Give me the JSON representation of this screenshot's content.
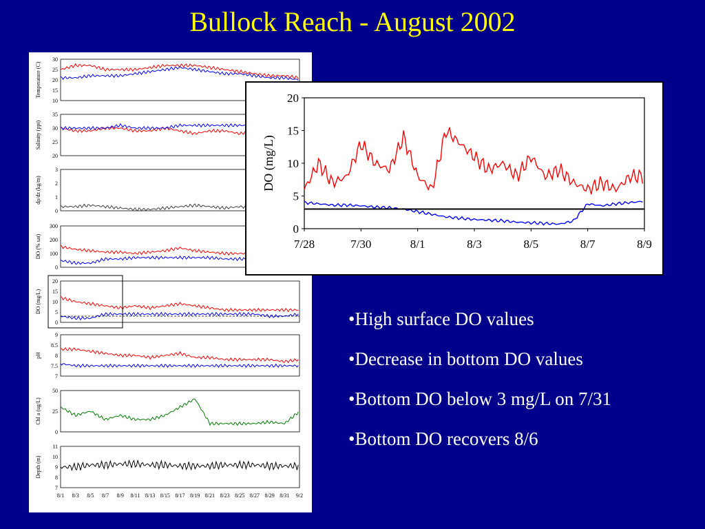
{
  "slide": {
    "title": "Bullock Reach - August 2002",
    "bullets": [
      "•High surface DO values",
      "•Decrease in bottom DO values",
      "•Bottom DO below 3 mg/L on 7/31",
      "•Bottom DO recovers 8/6"
    ]
  },
  "colors": {
    "background": "#00008b",
    "title": "#ffff00",
    "surface": "#ff0000",
    "bottom": "#0000ff",
    "chl": "#008000",
    "dp": "#404040",
    "depth": "#000000",
    "threshold": "#000000"
  },
  "chart_data": [
    {
      "type": "line",
      "title": "",
      "ylabel": "DO (mg/L)",
      "xlabel": "",
      "x_ticks": [
        "7/28",
        "7/30",
        "8/1",
        "8/3",
        "8/5",
        "8/7",
        "8/9"
      ],
      "ylim": [
        0,
        20
      ],
      "y_ticks": [
        0,
        5,
        10,
        15,
        20
      ],
      "threshold": 3,
      "series": [
        {
          "color": "#ff0000",
          "x": [
            0,
            0.5,
            1,
            1.5,
            2,
            2.5,
            3,
            3.5,
            4,
            4.5,
            5,
            5.5,
            6,
            6.5,
            7,
            7.5,
            8,
            8.5,
            9,
            9.5,
            10,
            10.5,
            11,
            11.5,
            12
          ],
          "values": [
            6,
            10,
            7,
            8,
            13,
            10,
            9,
            14,
            8,
            6,
            15,
            13,
            11,
            9,
            10,
            8,
            11,
            8,
            9,
            7,
            6,
            7,
            6,
            8,
            8
          ]
        },
        {
          "color": "#0000ff",
          "x": [
            0,
            0.5,
            1,
            1.5,
            2,
            2.5,
            3,
            3.5,
            4,
            4.5,
            5,
            5.5,
            6,
            6.5,
            7,
            7.5,
            8,
            8.5,
            9,
            9.5,
            10,
            10.5,
            11,
            11.5,
            12
          ],
          "values": [
            4,
            3.8,
            3.6,
            3.6,
            3.5,
            3.3,
            3.2,
            3.0,
            2.6,
            2.2,
            1.8,
            1.6,
            1.4,
            1.3,
            1.2,
            1.0,
            0.9,
            0.8,
            0.7,
            1.2,
            3.8,
            3.5,
            3.8,
            4.0,
            4.2
          ]
        }
      ]
    },
    {
      "type": "line",
      "ylabel": "Temperature (C)",
      "yticks": [
        10,
        15,
        20,
        25,
        30
      ],
      "x_ticks": [
        "8/1",
        "8/3",
        "8/5",
        "8/7",
        "8/9",
        "8/11",
        "8/13",
        "8/15",
        "8/17",
        "8/19",
        "8/21",
        "8/23",
        "8/25",
        "8/27",
        "8/29",
        "8/31",
        "9/2"
      ],
      "series": [
        {
          "color": "#ff0000",
          "values": [
            25,
            27,
            27,
            25,
            25,
            25,
            26,
            27,
            27,
            27,
            26,
            25,
            24,
            23,
            22,
            22,
            21
          ]
        },
        {
          "color": "#0000ff",
          "values": [
            21,
            21,
            22,
            22,
            22,
            23,
            24,
            25,
            26,
            25,
            24,
            23,
            23,
            22,
            21,
            21,
            20
          ]
        }
      ]
    },
    {
      "type": "line",
      "ylabel": "Salinity (ppt)",
      "yticks": [
        20,
        25,
        30,
        35
      ],
      "series": [
        {
          "color": "#ff0000",
          "values": [
            30,
            29,
            29,
            30,
            30,
            29,
            29,
            30,
            29,
            28,
            29,
            29,
            28,
            29,
            29,
            29,
            29
          ]
        },
        {
          "color": "#0000ff",
          "values": [
            30,
            30,
            30,
            30,
            31,
            30,
            30,
            30,
            31,
            31,
            31,
            31,
            31,
            31,
            30,
            30,
            30
          ]
        }
      ]
    },
    {
      "type": "line",
      "ylabel": "dρ/dz (kg/m)",
      "yticks": [
        0,
        1,
        2,
        3
      ],
      "series": [
        {
          "color": "#404040",
          "values": [
            0.3,
            0.3,
            0.4,
            0.3,
            0.2,
            0.1,
            0.1,
            0.2,
            0.3,
            0.4,
            0.3,
            0.2,
            0.3,
            0.2,
            0.2,
            0.2,
            0.2
          ]
        }
      ]
    },
    {
      "type": "line",
      "ylabel": "DO (% sat)",
      "yticks": [
        0,
        100,
        200,
        300
      ],
      "series": [
        {
          "color": "#ff0000",
          "values": [
            150,
            130,
            120,
            110,
            110,
            100,
            110,
            120,
            140,
            120,
            110,
            100,
            100,
            100,
            90,
            90,
            90
          ]
        },
        {
          "color": "#0000ff",
          "values": [
            50,
            30,
            30,
            60,
            60,
            70,
            70,
            70,
            70,
            70,
            70,
            60,
            60,
            60,
            60,
            60,
            70
          ]
        }
      ]
    },
    {
      "type": "line",
      "ylabel": "DO (mg/L)",
      "yticks": [
        0,
        5,
        10,
        15,
        20
      ],
      "threshold": 3,
      "series": [
        {
          "color": "#ff0000",
          "values": [
            12,
            10,
            9,
            8,
            7,
            8,
            7,
            8,
            9,
            8,
            7,
            6,
            6,
            6,
            6,
            6,
            6
          ]
        },
        {
          "color": "#0000ff",
          "values": [
            3,
            2,
            2,
            4,
            4,
            4,
            4,
            4,
            4,
            4,
            4,
            4,
            4,
            4,
            3,
            3,
            4
          ]
        }
      ]
    },
    {
      "type": "line",
      "ylabel": "pH",
      "yticks": [
        7.0,
        7.5,
        8.0,
        8.5,
        9.0
      ],
      "series": [
        {
          "color": "#ff0000",
          "values": [
            8.3,
            8.3,
            8.2,
            8.1,
            8.0,
            8.0,
            7.9,
            8.0,
            8.1,
            7.9,
            7.9,
            7.8,
            7.8,
            7.8,
            7.8,
            7.7,
            7.8
          ]
        },
        {
          "color": "#0000ff",
          "values": [
            7.6,
            7.5,
            7.5,
            7.5,
            7.5,
            7.5,
            7.5,
            7.5,
            7.5,
            7.5,
            7.5,
            7.5,
            7.5,
            7.5,
            7.5,
            7.5,
            7.5
          ]
        }
      ]
    },
    {
      "type": "line",
      "ylabel": "Chl a (ug/L)",
      "yticks": [
        0,
        25,
        50
      ],
      "series": [
        {
          "color": "#008000",
          "values": [
            30,
            20,
            25,
            15,
            20,
            15,
            15,
            20,
            30,
            40,
            10,
            10,
            10,
            10,
            12,
            10,
            25
          ]
        }
      ]
    },
    {
      "type": "line",
      "ylabel": "Depth (m)",
      "yticks": [
        7,
        8,
        9,
        10,
        11
      ],
      "series": [
        {
          "color": "#000000",
          "values": [
            9,
            9,
            9.2,
            9.2,
            9.3,
            9.3,
            9.2,
            9.2,
            9.1,
            9.1,
            9.1,
            9.2,
            9.2,
            9.2,
            9.1,
            9.1,
            9.1
          ]
        }
      ]
    }
  ]
}
